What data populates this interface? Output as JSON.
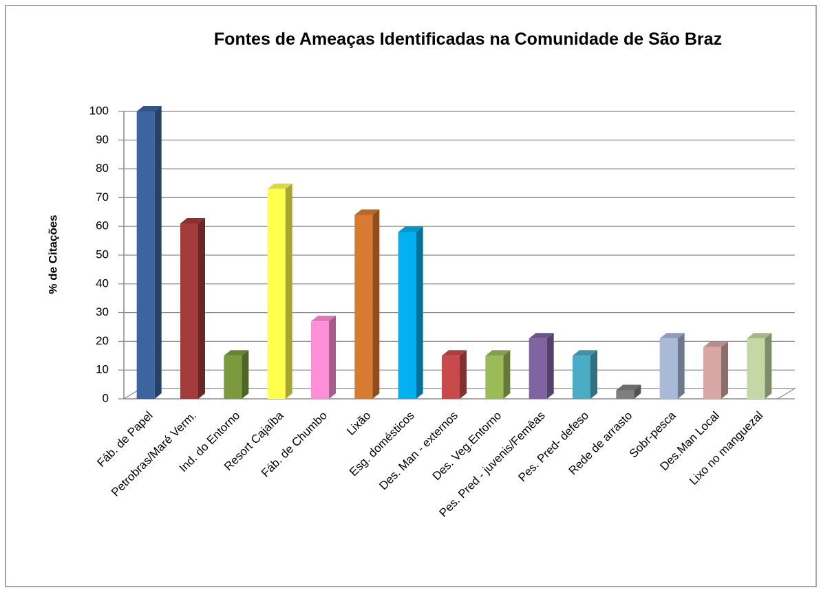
{
  "chart_data": {
    "type": "bar3d",
    "title": "Fontes de Ameaças Identificadas na Comunidade de São Braz",
    "y_label": "% de Citações",
    "categories": [
      "Fáb. de Papel",
      "Petrobras/Maré Verm.",
      "Ind. do Entorno",
      "Resort Cajaíba",
      "Fáb. de Chumbo",
      "Lixão",
      "Esg. domésticos",
      "Des. Man - externos",
      "Des. Veg.Entorno",
      "Pes. Pred - juvenis/Femêas",
      "Pes. Pred- defeso",
      "Rede de arrasto",
      "Sobr-pesca",
      "Des.Man Local",
      "Lixo no manguezal"
    ],
    "values": [
      100,
      61,
      15,
      73,
      27,
      64,
      58,
      15,
      15,
      21,
      15,
      3,
      21,
      18,
      21
    ],
    "colors": [
      "#3b64a0",
      "#a33b3a",
      "#7a9a3d",
      "#ffff4d",
      "#ff8fd6",
      "#d97a33",
      "#00b0f0",
      "#c94a4a",
      "#9bbb59",
      "#8064a2",
      "#4bacc6",
      "#7f7f7f",
      "#a9b9d9",
      "#d9a6a6",
      "#c4d7a4"
    ],
    "ylim": [
      0,
      100
    ],
    "yticks": [
      0,
      10,
      20,
      30,
      40,
      50,
      60,
      70,
      80,
      90,
      100
    ],
    "grid": true
  }
}
